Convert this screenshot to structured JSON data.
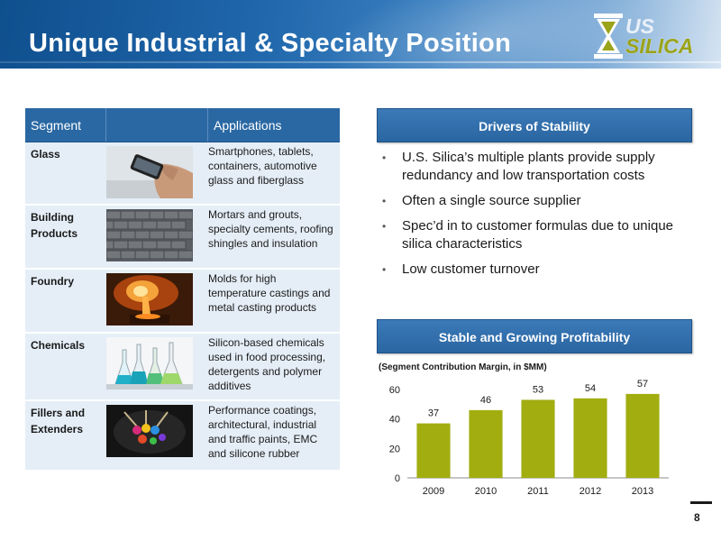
{
  "slide": {
    "title": "Unique Industrial & Specialty Position",
    "page_number": "8"
  },
  "logo": {
    "line1": "US",
    "line2": "SILICA",
    "tm": "™",
    "accent_color": "#9aa31a"
  },
  "table": {
    "headers": {
      "segment": "Segment",
      "applications": "Applications"
    },
    "rows": [
      {
        "segment": "Glass",
        "applications": "Smartphones, tablets, containers, automotive glass and fiberglass",
        "image": "hand-holding-phone"
      },
      {
        "segment": "Building Products",
        "applications": "Mortars and grouts, specialty cements, roofing shingles and insulation",
        "image": "roof-shingles"
      },
      {
        "segment": "Foundry",
        "applications": "Molds for high temperature castings and metal casting products",
        "image": "molten-metal-pour"
      },
      {
        "segment": "Chemicals",
        "applications": "Silicon-based chemicals used in food processing, detergents and polymer additives",
        "image": "lab-flasks"
      },
      {
        "segment": "Fillers and Extenders",
        "applications": "Performance coatings, architectural, industrial and traffic paints, EMC and silicone rubber",
        "image": "paint-brushes"
      }
    ]
  },
  "drivers": {
    "heading": "Drivers of Stability",
    "items": [
      "U.S. Silica’s multiple plants provide supply redundancy and low transportation costs",
      "Often a single source supplier",
      "Spec’d in to customer formulas due to unique silica characteristics",
      "Low customer turnover"
    ]
  },
  "profitability": {
    "heading": "Stable and Growing Profitability"
  },
  "chart_data": {
    "type": "bar",
    "title": "(Segment Contribution Margin, in $MM)",
    "categories": [
      "2009",
      "2010",
      "2011",
      "2012",
      "2013"
    ],
    "values": [
      37,
      46,
      53,
      54,
      57
    ],
    "ylim": [
      0,
      60
    ],
    "yticks": [
      0,
      20,
      40,
      60
    ],
    "bar_color": "#a2ad10",
    "grid": false,
    "legend": false
  },
  "colors": {
    "header_blue": "#2a68a3",
    "row_fill": "#e5eef7"
  }
}
